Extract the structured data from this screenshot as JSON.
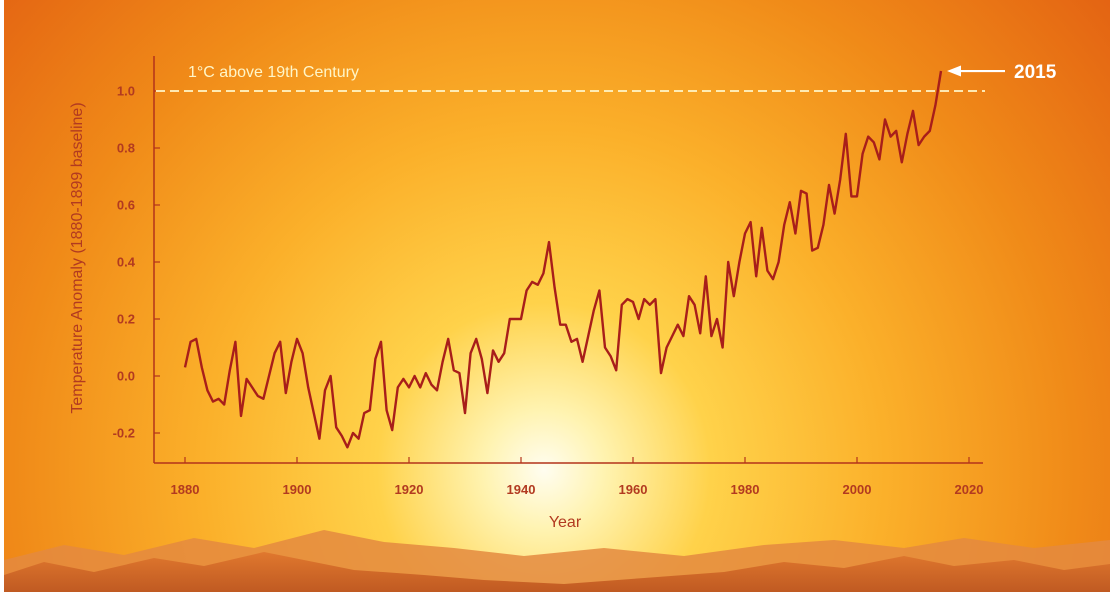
{
  "chart_data": {
    "type": "line",
    "title": "",
    "xlabel": "Year",
    "ylabel": "Temperature Anomaly (1880-1899 baseline)",
    "xlim": [
      1880,
      2020
    ],
    "ylim": [
      -0.25,
      1.1
    ],
    "x_ticks": [
      "1880",
      "1900",
      "1920",
      "1940",
      "1960",
      "1980",
      "2000",
      "2020"
    ],
    "y_ticks": [
      "-0.2",
      "0.0",
      "0.2",
      "0.4",
      "0.6",
      "0.8",
      "1.0"
    ],
    "grid": false,
    "reference_line": {
      "y": 1.0,
      "label": "1°C above 19th Century",
      "style": "dashed"
    },
    "annotation": {
      "text": "2015",
      "x": 2015,
      "y": 1.07
    },
    "series": [
      {
        "x": [
          1880,
          1881,
          1882,
          1883,
          1884,
          1885,
          1886,
          1887,
          1888,
          1889,
          1890,
          1891,
          1892,
          1893,
          1894,
          1895,
          1896,
          1897,
          1898,
          1899,
          1900,
          1901,
          1902,
          1903,
          1904,
          1905,
          1906,
          1907,
          1908,
          1909,
          1910,
          1911,
          1912,
          1913,
          1914,
          1915,
          1916,
          1917,
          1918,
          1919,
          1920,
          1921,
          1922,
          1923,
          1924,
          1925,
          1926,
          1927,
          1928,
          1929,
          1930,
          1931,
          1932,
          1933,
          1934,
          1935,
          1936,
          1937,
          1938,
          1939,
          1940,
          1941,
          1942,
          1943,
          1944,
          1945,
          1946,
          1947,
          1948,
          1949,
          1950,
          1951,
          1952,
          1953,
          1954,
          1955,
          1956,
          1957,
          1958,
          1959,
          1960,
          1961,
          1962,
          1963,
          1964,
          1965,
          1966,
          1967,
          1968,
          1969,
          1970,
          1971,
          1972,
          1973,
          1974,
          1975,
          1976,
          1977,
          1978,
          1979,
          1980,
          1981,
          1982,
          1983,
          1984,
          1985,
          1986,
          1987,
          1988,
          1989,
          1990,
          1991,
          1992,
          1993,
          1994,
          1995,
          1996,
          1997,
          1998,
          1999,
          2000,
          2001,
          2002,
          2003,
          2004,
          2005,
          2006,
          2007,
          2008,
          2009,
          2010,
          2011,
          2012,
          2013,
          2014,
          2015
        ],
        "y": [
          0.03,
          0.12,
          0.13,
          0.03,
          -0.05,
          -0.09,
          -0.08,
          -0.1,
          0.02,
          0.12,
          -0.14,
          -0.01,
          -0.04,
          -0.07,
          -0.08,
          0.0,
          0.08,
          0.12,
          -0.06,
          0.05,
          0.13,
          0.08,
          -0.04,
          -0.13,
          -0.22,
          -0.05,
          0.0,
          -0.18,
          -0.21,
          -0.25,
          -0.2,
          -0.22,
          -0.13,
          -0.12,
          0.06,
          0.12,
          -0.12,
          -0.19,
          -0.04,
          -0.01,
          -0.04,
          0.0,
          -0.04,
          0.01,
          -0.03,
          -0.05,
          0.05,
          0.13,
          0.02,
          0.01,
          -0.13,
          0.08,
          0.13,
          0.06,
          -0.06,
          0.09,
          0.05,
          0.08,
          0.2,
          0.2,
          0.2,
          0.3,
          0.33,
          0.32,
          0.36,
          0.47,
          0.31,
          0.18,
          0.18,
          0.12,
          0.13,
          0.05,
          0.14,
          0.23,
          0.3,
          0.1,
          0.07,
          0.02,
          0.25,
          0.27,
          0.26,
          0.2,
          0.27,
          0.25,
          0.27,
          0.01,
          0.1,
          0.14,
          0.18,
          0.14,
          0.28,
          0.25,
          0.15,
          0.35,
          0.14,
          0.2,
          0.1,
          0.4,
          0.28,
          0.4,
          0.5,
          0.54,
          0.35,
          0.52,
          0.37,
          0.34,
          0.4,
          0.53,
          0.61,
          0.5,
          0.65,
          0.64,
          0.44,
          0.45,
          0.53,
          0.67,
          0.57,
          0.69,
          0.85,
          0.63,
          0.63,
          0.78,
          0.84,
          0.82,
          0.76,
          0.9,
          0.84,
          0.86,
          0.75,
          0.85,
          0.93,
          0.81,
          0.84,
          0.86,
          0.95,
          1.07
        ]
      }
    ]
  },
  "colors": {
    "line": "#a81e1a",
    "axis": "#b3331a",
    "tick_text": "#b23a20",
    "reference": "#fff6c8",
    "annotation": "#ffffff"
  }
}
